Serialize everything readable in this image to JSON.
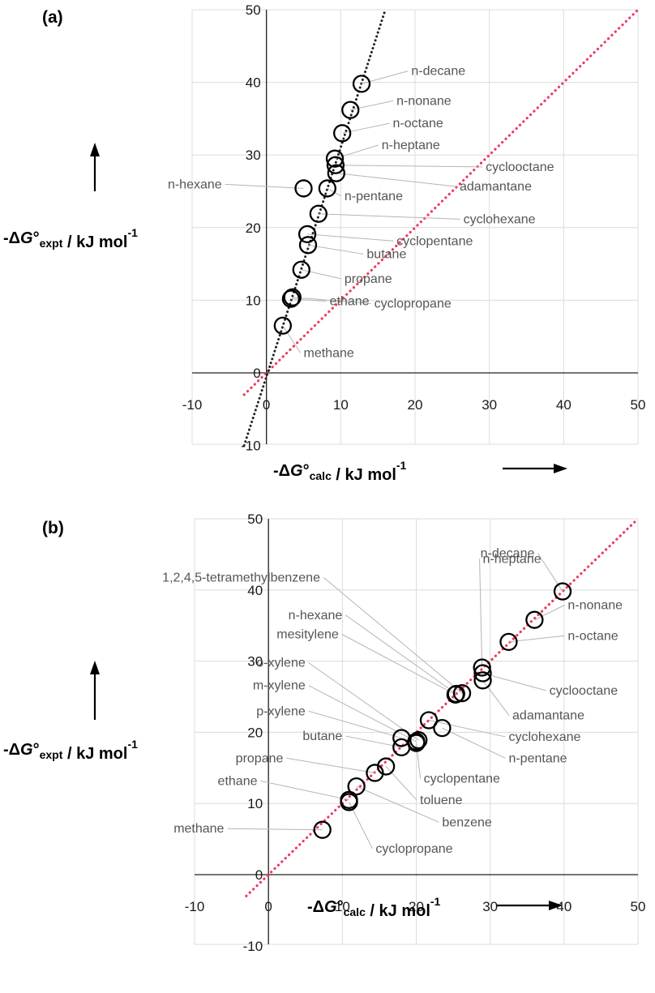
{
  "chart_data": [
    {
      "type": "scatter",
      "panel_label": "(a)",
      "xlim": [
        -10,
        50
      ],
      "ylim": [
        -10,
        50
      ],
      "x_ticks": [
        -10,
        0,
        10,
        20,
        30,
        40,
        50
      ],
      "y_ticks": [
        -10,
        0,
        10,
        20,
        30,
        40,
        50
      ],
      "xlabel": {
        "prefix": "-Δ",
        "g": "G",
        "deg": "°",
        "sub": "calc",
        "unit": " / kJ mol",
        "sup": "-1"
      },
      "ylabel": {
        "prefix": "-Δ",
        "g": "G",
        "deg": "°",
        "sub": "expt",
        "unit": " / kJ mol",
        "sup": "-1"
      },
      "grid": true,
      "fit_line": {
        "style": "dotted",
        "color": "#222222",
        "points": [
          [
            -3,
            -10
          ],
          [
            16,
            50
          ]
        ]
      },
      "identity_line": {
        "style": "dotted",
        "color": "#ee3a5a",
        "points": [
          [
            -3,
            -3
          ],
          [
            50,
            50
          ]
        ]
      },
      "points": [
        {
          "name": "methane",
          "x": 2.2,
          "y": 6.5,
          "label_x": 5,
          "label_y": 2.2
        },
        {
          "name": "cyclopropane",
          "x": 3.5,
          "y": 10.4,
          "label_x": 14.5,
          "label_y": 9.0
        },
        {
          "name": "ethane",
          "x": 3.3,
          "y": 10.2,
          "label_x": 8.5,
          "label_y": 9.3
        },
        {
          "name": "propane",
          "x": 4.7,
          "y": 14.2,
          "label_x": 10.5,
          "label_y": 12.4
        },
        {
          "name": "butane",
          "x": 5.6,
          "y": 17.6,
          "label_x": 13.5,
          "label_y": 15.8
        },
        {
          "name": "cyclopentane",
          "x": 5.5,
          "y": 19.1,
          "label_x": 17.5,
          "label_y": 17.6
        },
        {
          "name": "cyclohexane",
          "x": 7.0,
          "y": 21.9,
          "label_x": 26.5,
          "label_y": 20.6
        },
        {
          "name": "n-pentane",
          "x": 8.2,
          "y": 25.4,
          "label_x": 10.5,
          "label_y": 23.8
        },
        {
          "name": "n-hexane",
          "x": 5.0,
          "y": 25.4,
          "label_x": -6.0,
          "label_y": 25.4
        },
        {
          "name": "adamantane",
          "x": 9.4,
          "y": 27.5,
          "label_x": 26.0,
          "label_y": 25.1
        },
        {
          "name": "cyclooctane",
          "x": 9.3,
          "y": 28.6,
          "label_x": 29.5,
          "label_y": 27.8
        },
        {
          "name": "n-heptane",
          "x": 9.2,
          "y": 29.5,
          "label_x": 15.5,
          "label_y": 30.8
        },
        {
          "name": "n-octane",
          "x": 10.2,
          "y": 33.0,
          "label_x": 17.0,
          "label_y": 33.8
        },
        {
          "name": "n-nonane",
          "x": 11.3,
          "y": 36.2,
          "label_x": 17.5,
          "label_y": 36.9
        },
        {
          "name": "n-decane",
          "x": 12.8,
          "y": 39.8,
          "label_x": 19.5,
          "label_y": 41.0
        }
      ]
    },
    {
      "type": "scatter",
      "panel_label": "(b)",
      "xlim": [
        -10,
        50
      ],
      "ylim": [
        -10,
        50
      ],
      "x_ticks": [
        -10,
        0,
        10,
        20,
        30,
        40,
        50
      ],
      "y_ticks": [
        -10,
        0,
        10,
        20,
        30,
        40,
        50
      ],
      "xlabel": {
        "prefix": "-Δ",
        "g": "G",
        "deg": "°",
        "sub": "calc",
        "unit": " / kJ mol",
        "sup": "-1"
      },
      "ylabel": {
        "prefix": "-Δ",
        "g": "G",
        "deg": "°",
        "sub": "expt",
        "unit": " / kJ mol",
        "sup": "-1"
      },
      "grid": true,
      "identity_line": {
        "style": "dotted",
        "color": "#ee3a5a",
        "points": [
          [
            -3,
            -3
          ],
          [
            50,
            50
          ]
        ]
      },
      "points": [
        {
          "name": "methane",
          "x": 7.3,
          "y": 6.3,
          "label_x": -6.0,
          "label_y": 5.9
        },
        {
          "name": "cyclopropane",
          "x": 10.9,
          "y": 10.2,
          "label_x": 14.5,
          "label_y": 3.1
        },
        {
          "name": "ethane",
          "x": 10.9,
          "y": 10.5,
          "label_x": -1.5,
          "label_y": 12.6
        },
        {
          "name": "benzene",
          "x": 11.9,
          "y": 12.4,
          "label_x": 23.5,
          "label_y": 6.8
        },
        {
          "name": "propane",
          "x": 14.4,
          "y": 14.3,
          "label_x": 2.0,
          "label_y": 15.8
        },
        {
          "name": "toluene",
          "x": 15.9,
          "y": 15.2,
          "label_x": 20.5,
          "label_y": 9.9
        },
        {
          "name": "butane",
          "x": 18.0,
          "y": 17.9,
          "label_x": 10.0,
          "label_y": 18.9
        },
        {
          "name": "cyclopentane",
          "x": 20.0,
          "y": 18.5,
          "label_x": 21.0,
          "label_y": 12.9
        },
        {
          "name": "p-xylene",
          "x": 18.0,
          "y": 19.2,
          "label_x": 5.0,
          "label_y": 22.4
        },
        {
          "name": "cyclohexane",
          "x": 21.7,
          "y": 21.7,
          "label_x": 32.5,
          "label_y": 18.8
        },
        {
          "name": "n-pentane",
          "x": 23.5,
          "y": 20.6,
          "label_x": 32.5,
          "label_y": 15.8
        },
        {
          "name": "m-xylene",
          "x": 20.0,
          "y": 18.7,
          "label_x": 5.0,
          "label_y": 26.0
        },
        {
          "name": "o-xylene",
          "x": 20.3,
          "y": 18.9,
          "label_x": 5.0,
          "label_y": 29.2
        },
        {
          "name": "mesitylene",
          "x": 25.3,
          "y": 25.3,
          "label_x": 9.5,
          "label_y": 33.2
        },
        {
          "name": "n-hexane",
          "x": 25.4,
          "y": 25.4,
          "label_x": 10.0,
          "label_y": 35.9
        },
        {
          "name": "1,2,4,5-tetramethylbenzene",
          "x": 26.2,
          "y": 25.5,
          "label_x": 7.0,
          "label_y": 41.2
        },
        {
          "name": "n-heptane",
          "x": 28.9,
          "y": 29.1,
          "label_x": 29.0,
          "label_y": 43.8
        },
        {
          "name": "cyclooctane",
          "x": 29.0,
          "y": 28.3,
          "label_x": 38.0,
          "label_y": 25.3
        },
        {
          "name": "adamantane",
          "x": 29.0,
          "y": 27.3,
          "label_x": 33.0,
          "label_y": 21.8
        },
        {
          "name": "n-octane",
          "x": 32.5,
          "y": 32.7,
          "label_x": 40.5,
          "label_y": 33.0
        },
        {
          "name": "n-nonane",
          "x": 36.0,
          "y": 35.8,
          "label_x": 40.5,
          "label_y": 37.3
        },
        {
          "name": "n-decane",
          "x": 39.8,
          "y": 39.8,
          "label_x": 36.0,
          "label_y": 44.6
        }
      ]
    }
  ]
}
